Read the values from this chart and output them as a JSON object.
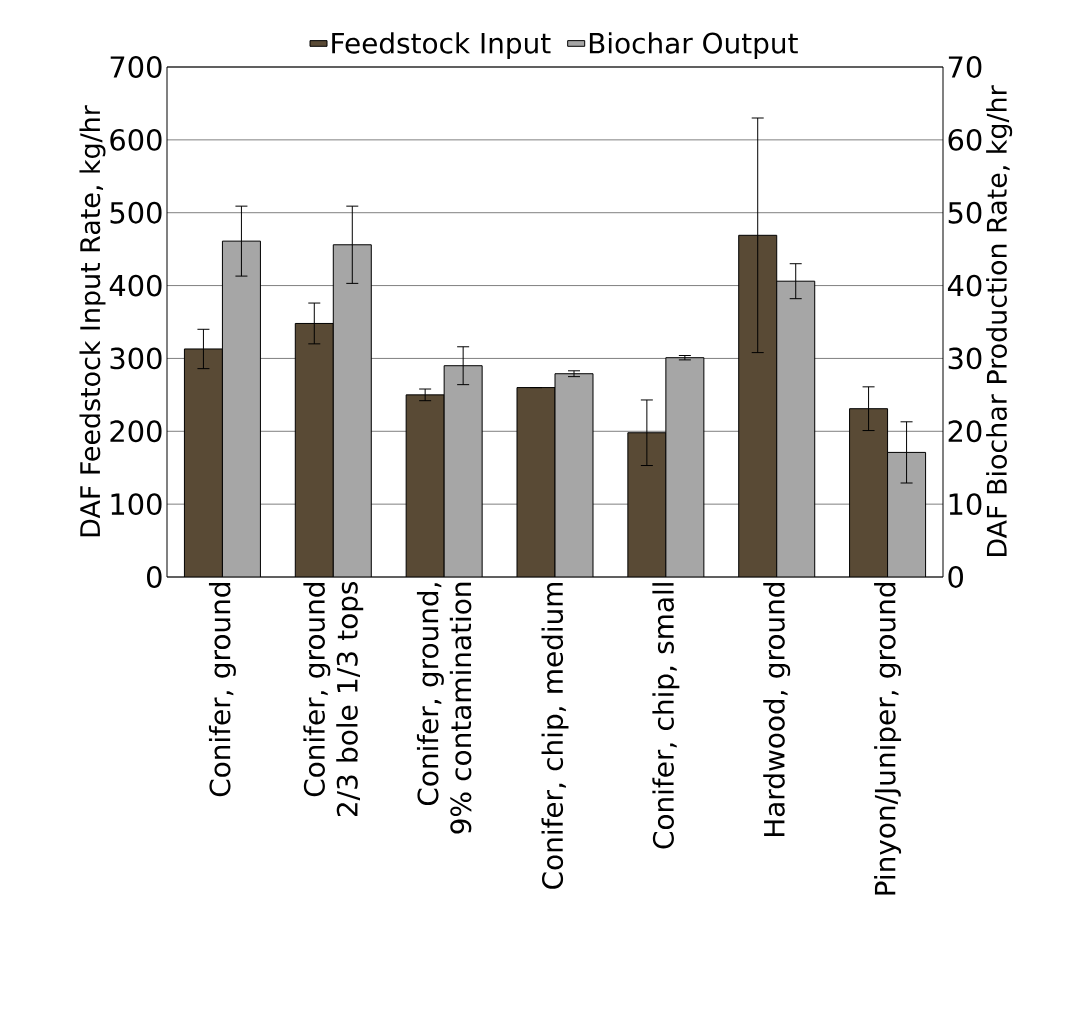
{
  "chart_data": {
    "type": "bar",
    "categories": [
      "Conifer, ground",
      "Conifer, ground 2/3 bole 1/3 tops",
      "Conifer, ground, 9% contamination",
      "Conifer, chip, medium",
      "Conifer, chip, small",
      "Hardwood, ground",
      "Pinyon/Juniper, ground"
    ],
    "series": [
      {
        "name": "Feedstock Input",
        "color": "#594a35",
        "values": [
          313,
          348,
          250,
          260,
          198,
          469,
          231
        ],
        "errors": [
          27,
          28,
          8,
          0,
          45,
          161,
          30
        ]
      },
      {
        "name": "Biochar Output",
        "color": "#a6a6a6",
        "axis": "y2",
        "values": [
          46.1,
          45.6,
          29.0,
          27.9,
          30.1,
          40.6,
          17.1
        ],
        "errors": [
          4.8,
          5.3,
          2.6,
          0.4,
          0.3,
          2.4,
          4.2
        ]
      }
    ],
    "ylabel": "DAF Feedstock Input Rate, kg/hr",
    "y2label": "DAF Biochar Production Rate, kg/hr",
    "ylim": [
      0,
      700
    ],
    "yticks": [
      0,
      100,
      200,
      300,
      400,
      500,
      600,
      700
    ],
    "y2lim": [
      0,
      70
    ],
    "y2ticks": [
      0,
      10,
      20,
      30,
      40,
      50,
      60,
      70
    ],
    "grid": "y",
    "legend": "top"
  }
}
